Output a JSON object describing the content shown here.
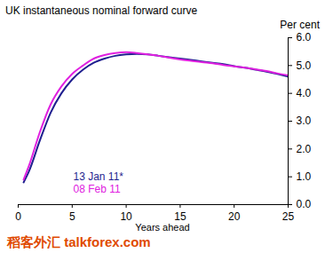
{
  "chart_data": {
    "type": "line",
    "title": "UK instantaneous nominal forward curve",
    "y_label": "Per cent",
    "x_label": "Years ahead",
    "annotations": [
      "稻客外汇 talkforex.com"
    ],
    "x": [
      0.5,
      1,
      2,
      3,
      4,
      5,
      6,
      7,
      8,
      9,
      10,
      11,
      12,
      13,
      14,
      15,
      16,
      17,
      18,
      19,
      20,
      21,
      22,
      23,
      24,
      25
    ],
    "series": [
      {
        "name": "13 Jan 11*",
        "color": "#1f1f8f",
        "values": [
          0.8,
          1.2,
          2.3,
          3.3,
          4.0,
          4.5,
          4.85,
          5.1,
          5.25,
          5.35,
          5.4,
          5.42,
          5.4,
          5.35,
          5.3,
          5.25,
          5.2,
          5.15,
          5.1,
          5.05,
          4.98,
          4.92,
          4.85,
          4.78,
          4.7,
          4.6
        ]
      },
      {
        "name": "08 Feb 11",
        "color": "#e020e0",
        "values": [
          0.9,
          1.4,
          2.6,
          3.6,
          4.25,
          4.7,
          5.0,
          5.25,
          5.38,
          5.45,
          5.48,
          5.45,
          5.4,
          5.35,
          5.28,
          5.22,
          5.17,
          5.12,
          5.08,
          5.02,
          4.97,
          4.92,
          4.86,
          4.8,
          4.72,
          4.65
        ]
      }
    ],
    "xlim": [
      0,
      25
    ],
    "xticks": [
      0,
      5,
      10,
      15,
      20,
      25
    ],
    "ylim": [
      0,
      6
    ],
    "yticks": [
      {
        "value": 0,
        "label": "0.0"
      },
      {
        "value": 1,
        "label": "1.0"
      },
      {
        "value": 2,
        "label": "2.0"
      },
      {
        "value": 3,
        "label": "3.0"
      },
      {
        "value": 4,
        "label": "4.0"
      },
      {
        "value": 5,
        "label": "5.0"
      },
      {
        "value": 6,
        "label": "6.0"
      }
    ],
    "grid": false
  }
}
